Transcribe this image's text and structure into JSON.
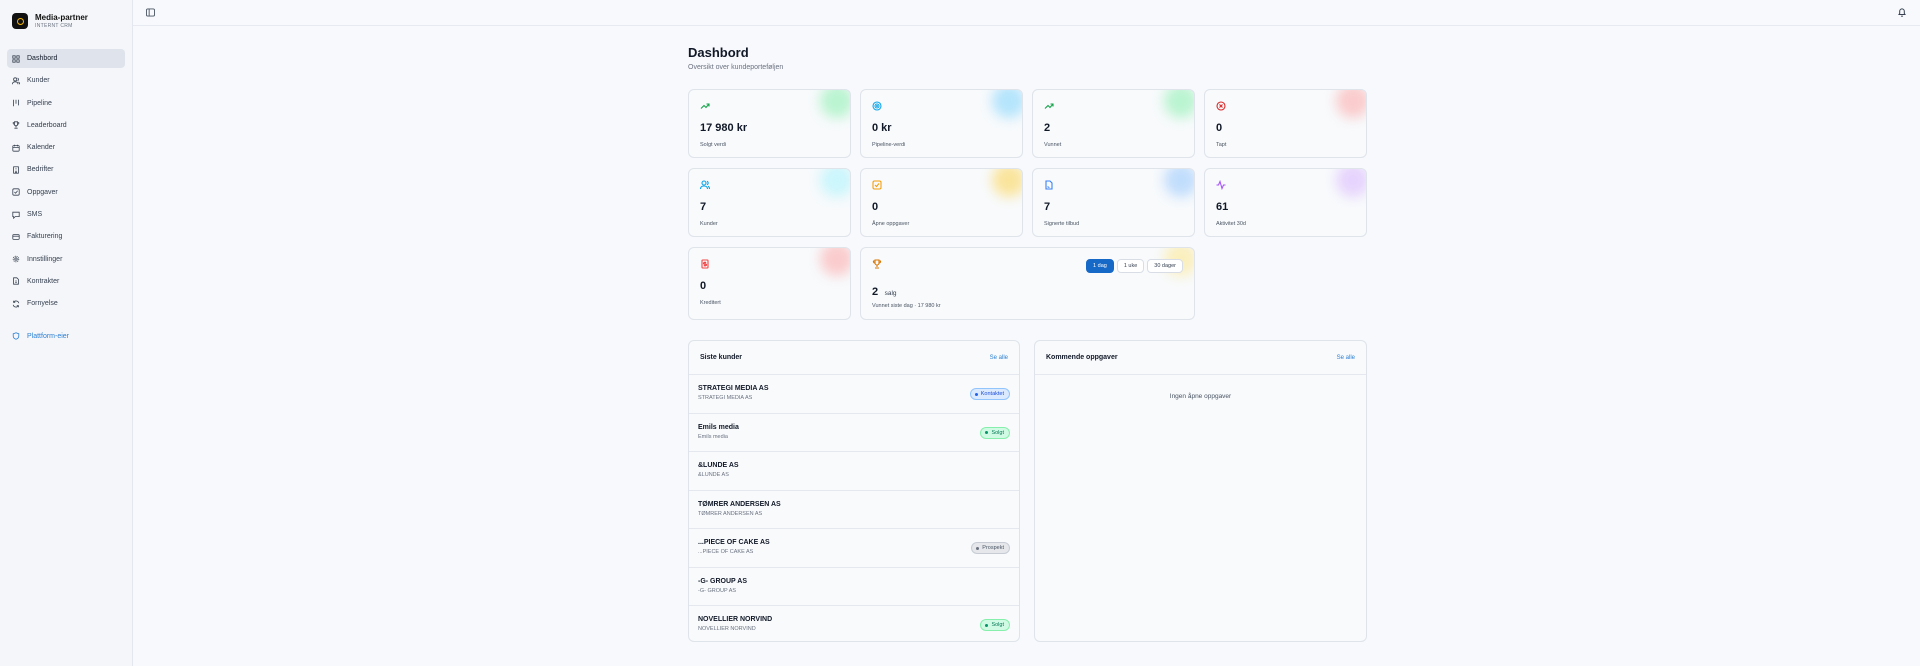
{
  "brand": {
    "title": "Media-partner",
    "subtitle": "INTERNT CRM"
  },
  "nav": {
    "items": [
      {
        "label": "Dashbord"
      },
      {
        "label": "Kunder"
      },
      {
        "label": "Pipeline"
      },
      {
        "label": "Leaderboard"
      },
      {
        "label": "Kalender"
      },
      {
        "label": "Bedrifter"
      },
      {
        "label": "Oppgaver"
      },
      {
        "label": "SMS"
      },
      {
        "label": "Fakturering"
      },
      {
        "label": "Innstillinger"
      },
      {
        "label": "Kontrakter"
      },
      {
        "label": "Fornyelse"
      }
    ],
    "platform": "Plattform-eier"
  },
  "page": {
    "title": "Dashbord",
    "subtitle": "Oversikt over kundeporteføljen"
  },
  "stats": [
    {
      "value": "17 980 kr",
      "label": "Solgt verdi",
      "icon": "trending-up-icon",
      "color": "#16a34a"
    },
    {
      "value": "0 kr",
      "label": "Pipeline-verdi",
      "icon": "target-icon",
      "color": "#0ea5e9"
    },
    {
      "value": "2",
      "label": "Vunnet",
      "icon": "trending-up-icon",
      "color": "#16a34a"
    },
    {
      "value": "0",
      "label": "Tapt",
      "icon": "x-circle-icon",
      "color": "#dc2626"
    },
    {
      "value": "7",
      "label": "Kunder",
      "icon": "users-icon",
      "color": "#0ea5e9"
    },
    {
      "value": "0",
      "label": "Åpne oppgaver",
      "icon": "check-square-icon",
      "color": "#f59e0b"
    },
    {
      "value": "7",
      "label": "Signerte tilbud",
      "icon": "file-signature-icon",
      "color": "#3b82f6"
    },
    {
      "value": "61",
      "label": "Aktivitet 30d",
      "icon": "activity-icon",
      "color": "#a855f7"
    },
    {
      "value": "0",
      "label": "Kreditert",
      "icon": "receipt-icon",
      "color": "#ef4444"
    }
  ],
  "wins": {
    "value": "2",
    "unit": "salg",
    "label": "Vunnet siste dag · 17 980 kr",
    "periods": [
      "1 dag",
      "1 uke",
      "30 dager"
    ],
    "active_period": "1 dag"
  },
  "recent_customers": {
    "title": "Siste kunder",
    "link": "Se alle",
    "rows": [
      {
        "name": "STRATEGI MEDIA AS",
        "sub": "STRATEGI MEDIA AS",
        "status": "Kontaktet"
      },
      {
        "name": "Emils media",
        "sub": "Emils media",
        "status": "Solgt"
      },
      {
        "name": "&LUNDE AS",
        "sub": "&LUNDE AS",
        "status": ""
      },
      {
        "name": "TØMRER ANDERSEN AS",
        "sub": "TØMRER ANDERSEN AS",
        "status": ""
      },
      {
        "name": "...PIECE OF CAKE AS",
        "sub": "...PIECE OF CAKE AS",
        "status": "Prospekt"
      },
      {
        "name": "-G- GROUP AS",
        "sub": "-G- GROUP AS",
        "status": ""
      },
      {
        "name": "NOVELLIER   NORVIND",
        "sub": "NOVELLIER   NORVIND",
        "status": "Solgt"
      }
    ]
  },
  "upcoming_tasks": {
    "title": "Kommende oppgaver",
    "link": "Se alle",
    "empty": "Ingen åpne oppgaver"
  },
  "colors": {
    "accent": "#1769c7",
    "link": "#2b7fd4",
    "sold": "#059669",
    "contacted": "#2563eb",
    "prospect": "#6b7280"
  }
}
